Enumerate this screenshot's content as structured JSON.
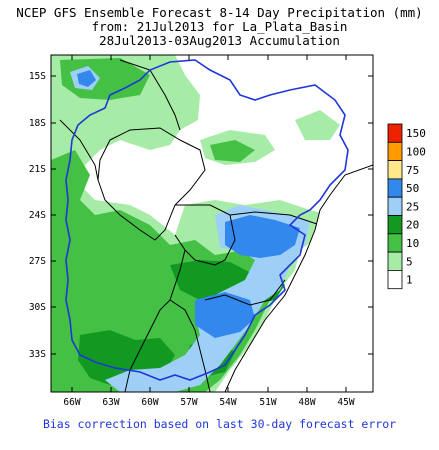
{
  "header": {
    "line1": "NCEP GFS Ensemble Forecast 8-14 Day Precipitation (mm)",
    "line2": "from: 21Jul2013   for La_Plata_Basin",
    "line3": "28Jul2013-03Aug2013 Accumulation"
  },
  "axes": {
    "lat_labels": [
      "15S",
      "18S",
      "21S",
      "24S",
      "27S",
      "30S",
      "33S"
    ],
    "lon_labels": [
      "66W",
      "63W",
      "60W",
      "57W",
      "54W",
      "51W",
      "48W",
      "45W"
    ]
  },
  "legend": {
    "items": [
      {
        "label": "150",
        "color": "#ee2200"
      },
      {
        "label": "100",
        "color": "#ff9a00"
      },
      {
        "label": "75",
        "color": "#ffe98a"
      },
      {
        "label": "50",
        "color": "#3388ee"
      },
      {
        "label": "25",
        "color": "#9ed0f7"
      },
      {
        "label": "20",
        "color": "#119922"
      },
      {
        "label": "10",
        "color": "#44c044"
      },
      {
        "label": "5",
        "color": "#a6eca6"
      },
      {
        "label": "1",
        "color": "#ffffff"
      }
    ]
  },
  "colors": {
    "basin_outline": "#1f37d8",
    "borders": "#000000",
    "footer_text": "#1f37d8"
  },
  "footer": {
    "note": "Bias correction based on last 30-day forecast error"
  }
}
